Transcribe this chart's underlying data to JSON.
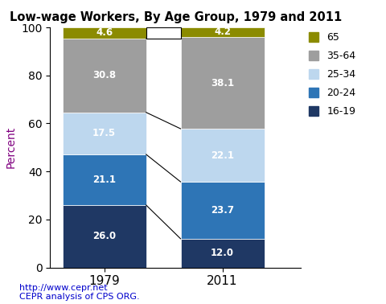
{
  "title": "Low-wage Workers, By Age Group, 1979 and 2011",
  "years": [
    "1979",
    "2011"
  ],
  "categories": [
    "16-19",
    "20-24",
    "25-34",
    "35-64",
    "65"
  ],
  "values_1979": [
    26.0,
    21.1,
    17.5,
    30.8,
    4.6
  ],
  "values_2011": [
    12.0,
    23.7,
    22.1,
    38.1,
    4.2
  ],
  "colors": [
    "#1F3864",
    "#2E75B6",
    "#BDD7EE",
    "#9E9E9E",
    "#8B8B00"
  ],
  "ylabel": "Percent",
  "ylim": [
    0,
    100
  ],
  "footnote1": "http://www.cepr.net",
  "footnote2": "CEPR analysis of CPS ORG.",
  "bar_width": 0.85,
  "bar_positions": [
    1.0,
    2.2
  ]
}
